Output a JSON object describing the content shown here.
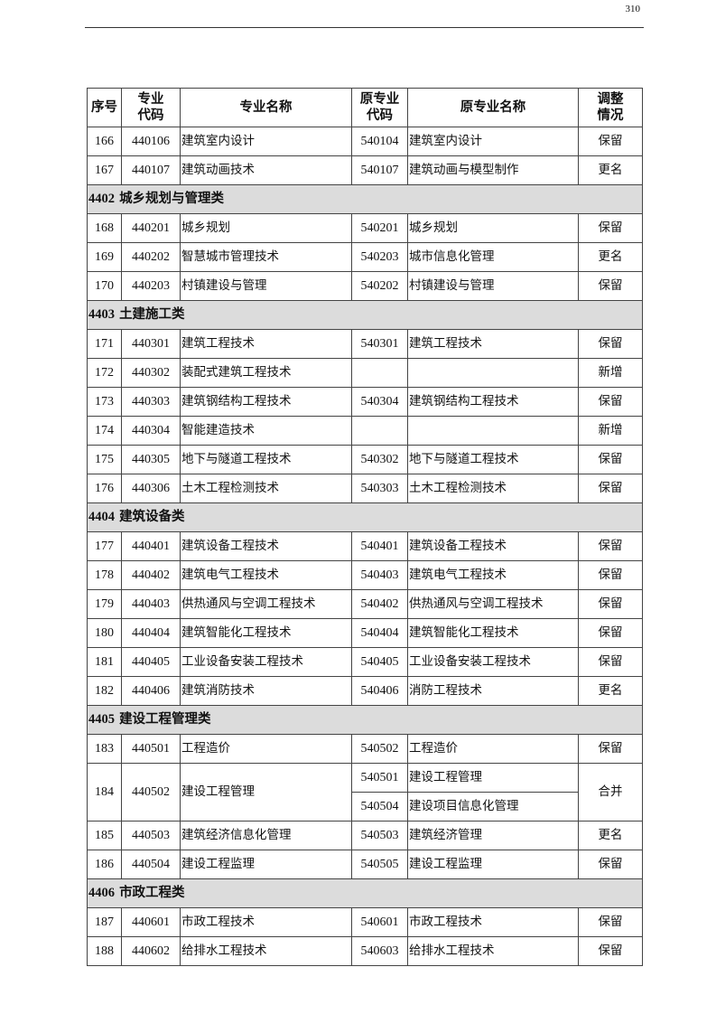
{
  "page_number": "310",
  "headers": [
    "序号",
    "专业\n代码",
    "专业名称",
    "原专业\n代码",
    "原专业名称",
    "调整\n情况"
  ],
  "rows": [
    {
      "type": "row",
      "no": "166",
      "code": "440106",
      "name": "建筑室内设计",
      "orig_code": "540104",
      "orig_name": "建筑室内设计",
      "status": "保留"
    },
    {
      "type": "row",
      "no": "167",
      "code": "440107",
      "name": "建筑动画技术",
      "orig_code": "540107",
      "orig_name": "建筑动画与模型制作",
      "status": "更名"
    },
    {
      "type": "section",
      "code": "4402",
      "title": "城乡规划与管理类"
    },
    {
      "type": "row",
      "no": "168",
      "code": "440201",
      "name": "城乡规划",
      "orig_code": "540201",
      "orig_name": "城乡规划",
      "status": "保留"
    },
    {
      "type": "row",
      "no": "169",
      "code": "440202",
      "name": "智慧城市管理技术",
      "orig_code": "540203",
      "orig_name": "城市信息化管理",
      "status": "更名"
    },
    {
      "type": "row",
      "no": "170",
      "code": "440203",
      "name": "村镇建设与管理",
      "orig_code": "540202",
      "orig_name": "村镇建设与管理",
      "status": "保留"
    },
    {
      "type": "section",
      "code": "4403",
      "title": "土建施工类"
    },
    {
      "type": "row",
      "no": "171",
      "code": "440301",
      "name": "建筑工程技术",
      "orig_code": "540301",
      "orig_name": "建筑工程技术",
      "status": "保留"
    },
    {
      "type": "row",
      "no": "172",
      "code": "440302",
      "name": "装配式建筑工程技术",
      "orig_code": "",
      "orig_name": "",
      "status": "新增"
    },
    {
      "type": "row",
      "no": "173",
      "code": "440303",
      "name": "建筑钢结构工程技术",
      "orig_code": "540304",
      "orig_name": "建筑钢结构工程技术",
      "status": "保留"
    },
    {
      "type": "row",
      "no": "174",
      "code": "440304",
      "name": "智能建造技术",
      "orig_code": "",
      "orig_name": "",
      "status": "新增"
    },
    {
      "type": "row",
      "no": "175",
      "code": "440305",
      "name": "地下与隧道工程技术",
      "orig_code": "540302",
      "orig_name": "地下与隧道工程技术",
      "status": "保留"
    },
    {
      "type": "row",
      "no": "176",
      "code": "440306",
      "name": "土木工程检测技术",
      "orig_code": "540303",
      "orig_name": "土木工程检测技术",
      "status": "保留"
    },
    {
      "type": "section",
      "code": "4404",
      "title": "建筑设备类"
    },
    {
      "type": "row",
      "no": "177",
      "code": "440401",
      "name": "建筑设备工程技术",
      "orig_code": "540401",
      "orig_name": "建筑设备工程技术",
      "status": "保留"
    },
    {
      "type": "row",
      "no": "178",
      "code": "440402",
      "name": "建筑电气工程技术",
      "orig_code": "540403",
      "orig_name": "建筑电气工程技术",
      "status": "保留"
    },
    {
      "type": "row",
      "no": "179",
      "code": "440403",
      "name": "供热通风与空调工程技术",
      "orig_code": "540402",
      "orig_name": "供热通风与空调工程技术",
      "status": "保留"
    },
    {
      "type": "row",
      "no": "180",
      "code": "440404",
      "name": "建筑智能化工程技术",
      "orig_code": "540404",
      "orig_name": "建筑智能化工程技术",
      "status": "保留"
    },
    {
      "type": "row",
      "no": "181",
      "code": "440405",
      "name": "工业设备安装工程技术",
      "orig_code": "540405",
      "orig_name": "工业设备安装工程技术",
      "status": "保留"
    },
    {
      "type": "row",
      "no": "182",
      "code": "440406",
      "name": "建筑消防技术",
      "orig_code": "540406",
      "orig_name": "消防工程技术",
      "status": "更名"
    },
    {
      "type": "section",
      "code": "4405",
      "title": "建设工程管理类"
    },
    {
      "type": "row",
      "no": "183",
      "code": "440501",
      "name": "工程造价",
      "orig_code": "540502",
      "orig_name": "工程造价",
      "status": "保留"
    },
    {
      "type": "merged",
      "no": "184",
      "code": "440502",
      "name": "建设工程管理",
      "origins": [
        {
          "orig_code": "540501",
          "orig_name": "建设工程管理"
        },
        {
          "orig_code": "540504",
          "orig_name": "建设项目信息化管理"
        }
      ],
      "status": "合并"
    },
    {
      "type": "row",
      "no": "185",
      "code": "440503",
      "name": "建筑经济信息化管理",
      "orig_code": "540503",
      "orig_name": "建筑经济管理",
      "status": "更名"
    },
    {
      "type": "row",
      "no": "186",
      "code": "440504",
      "name": "建设工程监理",
      "orig_code": "540505",
      "orig_name": "建设工程监理",
      "status": "保留"
    },
    {
      "type": "section",
      "code": "4406",
      "title": "市政工程类"
    },
    {
      "type": "row",
      "no": "187",
      "code": "440601",
      "name": "市政工程技术",
      "orig_code": "540601",
      "orig_name": "市政工程技术",
      "status": "保留"
    },
    {
      "type": "row",
      "no": "188",
      "code": "440602",
      "name": "给排水工程技术",
      "orig_code": "540603",
      "orig_name": "给排水工程技术",
      "status": "保留"
    }
  ]
}
